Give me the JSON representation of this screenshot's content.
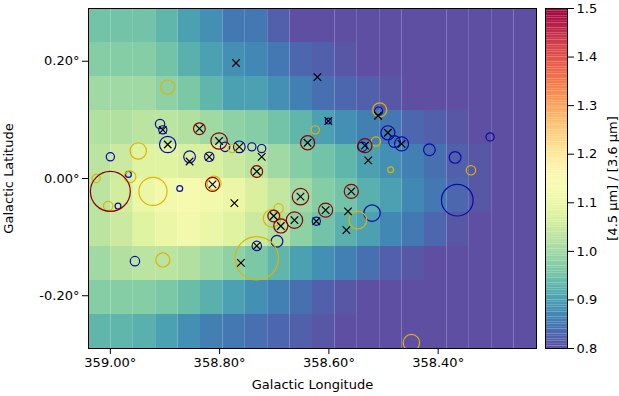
{
  "chart_data": {
    "type": "scatter",
    "xlabel": "Galactic Longitude",
    "ylabel": "Galactic Latitude",
    "xlim": [
      359.04,
      358.22
    ],
    "ylim": [
      -0.29,
      0.29
    ],
    "xticks": [
      {
        "value": 359.0,
        "label": "359.00°"
      },
      {
        "value": 358.8,
        "label": "358.80°"
      },
      {
        "value": 358.6,
        "label": "358.60°"
      },
      {
        "value": 358.4,
        "label": "358.40°"
      }
    ],
    "yticks": [
      {
        "value": 0.2,
        "label": "0.20°"
      },
      {
        "value": 0,
        "label": "0.00°"
      },
      {
        "value": -0.2,
        "label": "-0.20°"
      }
    ],
    "map": {
      "lon_edges": [
        359.04,
        358.999,
        358.958,
        358.917,
        358.876,
        358.835,
        358.794,
        358.753,
        358.712,
        358.671,
        358.63,
        358.589,
        358.548,
        358.507,
        358.466,
        358.425,
        358.384,
        358.343,
        358.302,
        358.261,
        358.22
      ],
      "lat_edges": [
        0.29,
        0.232,
        0.174,
        0.116,
        0.058,
        0,
        -0.058,
        -0.116,
        -0.174,
        -0.232,
        -0.29
      ],
      "values": [
        [
          0.95,
          0.95,
          0.95,
          0.93,
          0.9,
          0.88,
          0.85,
          0.85,
          0.82,
          0.8,
          0.8,
          0.8,
          0.8,
          0.8,
          0.8,
          0.8,
          0.8,
          0.8,
          0.8,
          0.8
        ],
        [
          0.97,
          0.97,
          0.97,
          0.95,
          0.92,
          0.9,
          0.88,
          0.87,
          0.85,
          0.83,
          0.82,
          0.81,
          0.8,
          0.8,
          0.8,
          0.8,
          0.8,
          0.8,
          0.8,
          0.8
        ],
        [
          1.0,
          1.0,
          1.0,
          0.98,
          0.96,
          0.93,
          0.9,
          0.9,
          0.88,
          0.86,
          0.84,
          0.83,
          0.82,
          0.81,
          0.8,
          0.8,
          0.8,
          0.8,
          0.8,
          0.8
        ],
        [
          1.02,
          1.02,
          1.03,
          1.03,
          1.02,
          1.0,
          0.98,
          0.97,
          0.95,
          0.93,
          0.9,
          0.88,
          0.86,
          0.85,
          0.83,
          0.82,
          0.81,
          0.8,
          0.8,
          0.8
        ],
        [
          1.03,
          1.05,
          1.08,
          1.08,
          1.07,
          1.07,
          1.05,
          1.03,
          1.0,
          0.97,
          0.95,
          0.93,
          0.9,
          0.88,
          0.86,
          0.84,
          0.82,
          0.81,
          0.8,
          0.8
        ],
        [
          1.03,
          1.06,
          1.1,
          1.12,
          1.13,
          1.12,
          1.1,
          1.07,
          1.04,
          1.0,
          0.97,
          0.95,
          0.92,
          0.9,
          0.87,
          0.85,
          0.83,
          0.81,
          0.8,
          0.8
        ],
        [
          1.03,
          1.05,
          1.08,
          1.1,
          1.12,
          1.1,
          1.08,
          1.05,
          1.02,
          0.98,
          0.95,
          0.92,
          0.9,
          0.87,
          0.85,
          0.83,
          0.81,
          0.8,
          0.8,
          0.8
        ],
        [
          1.0,
          1.02,
          1.03,
          1.03,
          1.02,
          1.0,
          0.98,
          0.96,
          0.93,
          0.9,
          0.88,
          0.86,
          0.84,
          0.82,
          0.81,
          0.8,
          0.8,
          0.8,
          0.8,
          0.8
        ],
        [
          0.97,
          0.97,
          0.97,
          0.96,
          0.94,
          0.92,
          0.9,
          0.88,
          0.86,
          0.84,
          0.82,
          0.81,
          0.8,
          0.8,
          0.8,
          0.8,
          0.8,
          0.8,
          0.8,
          0.8
        ],
        [
          0.93,
          0.93,
          0.92,
          0.9,
          0.88,
          0.86,
          0.85,
          0.84,
          0.83,
          0.82,
          0.81,
          0.8,
          0.8,
          0.8,
          0.8,
          0.8,
          0.8,
          0.8,
          0.8,
          0.8
        ]
      ]
    },
    "colorbar": {
      "label": "[4.5 μm] / [3.6 μm]",
      "range": [
        0.8,
        1.5
      ],
      "ticks": [
        0.8,
        0.9,
        {
          "value": 1,
          "label": "1.0"
        },
        1.1,
        1.2,
        1.3,
        1.4,
        1.5
      ]
    },
    "series": [
      {
        "color": "#0a0aa8",
        "marker": "circle",
        "x": [
          359.0,
          358.909,
          358.904,
          358.895,
          358.967,
          358.986,
          358.955,
          358.873,
          358.855,
          358.819,
          358.764,
          358.741,
          358.723,
          358.732,
          358.695,
          358.623,
          358.601,
          358.521,
          358.539,
          358.492,
          358.48,
          358.467,
          358.509,
          358.416,
          358.369,
          358.365,
          358.305,
          358.79
        ],
        "y": [
          0.037,
          0.093,
          0.083,
          0.058,
          0.007,
          -0.047,
          -0.141,
          -0.017,
          0.037,
          0.037,
          0.054,
          0.054,
          0.051,
          -0.115,
          -0.107,
          -0.073,
          0.098,
          -0.059,
          0.054,
          0.078,
          0.063,
          0.059,
          0.115,
          0.049,
          0.036,
          -0.037,
          0.071,
          0.054
        ],
        "radius": [
          0.007,
          0.008,
          0.007,
          0.014,
          0.005,
          0.005,
          0.008,
          0.005,
          0.01,
          0.008,
          0.01,
          0.007,
          0.007,
          0.008,
          0.01,
          0.007,
          0.005,
          0.014,
          0.008,
          0.012,
          0.01,
          0.012,
          0.007,
          0.01,
          0.01,
          0.027,
          0.007,
          0.008
        ]
      },
      {
        "color": "#ddb500",
        "marker": "circle",
        "x": [
          358.895,
          358.949,
          358.922,
          358.964,
          359.004,
          358.904,
          358.81,
          358.777,
          358.732,
          358.704,
          358.692,
          358.625,
          358.547,
          358.514,
          358.507,
          358.487,
          358.34,
          358.449,
          359.026
        ],
        "y": [
          0.156,
          0.047,
          -0.022,
          0.003,
          -0.047,
          -0.139,
          -0.008,
          0.051,
          -0.136,
          -0.068,
          -0.051,
          0.083,
          -0.071,
          0.063,
          0.117,
          0.015,
          0.014,
          -0.28,
          0
        ],
        "radius": [
          0.012,
          0.014,
          0.024,
          0.01,
          0.008,
          0.012,
          0.012,
          0.007,
          0.037,
          0.015,
          0.008,
          0.007,
          0.015,
          0.008,
          0.012,
          0.005,
          0.008,
          0.014,
          0.007
        ]
      },
      {
        "color": "#8b0000",
        "marker": "circle",
        "x": [
          359.0,
          358.837,
          358.813,
          358.801,
          358.732,
          358.701,
          358.688,
          358.663,
          358.652,
          358.639,
          358.606,
          358.559,
          358.534
        ],
        "y": [
          -0.022,
          0.085,
          -0.01,
          0.064,
          0.012,
          -0.064,
          -0.081,
          -0.071,
          -0.031,
          0.061,
          -0.054,
          -0.022,
          0.056
        ],
        "radius": [
          0.034,
          0.01,
          0.012,
          0.014,
          0.01,
          0.01,
          0.012,
          0.014,
          0.014,
          0.012,
          0.012,
          0.012,
          0.012
        ]
      },
      {
        "color": "#000000",
        "marker": "x",
        "x": [
          358.904,
          358.895,
          358.855,
          358.837,
          358.819,
          358.813,
          358.801,
          358.764,
          358.732,
          358.723,
          358.732,
          358.701,
          358.688,
          358.663,
          358.652,
          358.639,
          358.623,
          358.606,
          358.601,
          358.559,
          358.534,
          358.492,
          358.467,
          358.51,
          358.773,
          358.761,
          358.77,
          358.621,
          358.565,
          358.568,
          358.528
        ],
        "y": [
          0.083,
          0.058,
          0.029,
          0.085,
          0.037,
          -0.01,
          0.064,
          0.054,
          0.012,
          0.037,
          -0.115,
          -0.064,
          -0.081,
          -0.071,
          -0.031,
          0.061,
          -0.073,
          -0.054,
          0.098,
          -0.022,
          0.056,
          0.078,
          0.059,
          0.107,
          -0.042,
          -0.144,
          0.197,
          0.173,
          -0.056,
          -0.088,
          0.031
        ]
      }
    ]
  }
}
